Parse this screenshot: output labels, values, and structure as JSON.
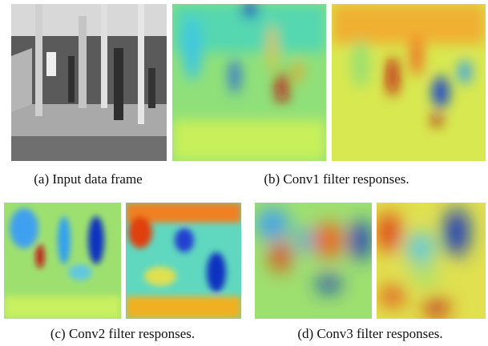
{
  "panels": [
    {
      "caption": "(a) Input data frame"
    },
    {
      "caption": "(b) Conv1 filter responses."
    },
    {
      "caption": "(c) Conv2 filter responses."
    },
    {
      "caption": "(d) Conv3 filter responses."
    }
  ]
}
